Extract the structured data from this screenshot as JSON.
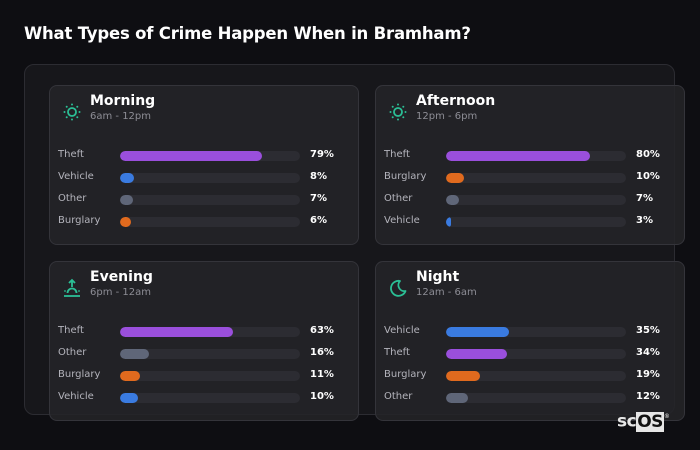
{
  "title": "What Types of Crime Happen When in Bramham?",
  "colors": {
    "Theft": "#9a4fdc",
    "Vehicle": "#3a7be0",
    "Other": "#5f6678",
    "Burglary": "#e06a1e",
    "icon": "#2bbf95"
  },
  "cards": [
    {
      "title": "Morning",
      "range": "6am - 12pm",
      "icon": "sun-icon",
      "rows": [
        {
          "label": "Theft",
          "value": 79,
          "text": "79%"
        },
        {
          "label": "Vehicle",
          "value": 8,
          "text": "8%"
        },
        {
          "label": "Other",
          "value": 7,
          "text": "7%"
        },
        {
          "label": "Burglary",
          "value": 6,
          "text": "6%"
        }
      ]
    },
    {
      "title": "Afternoon",
      "range": "12pm - 6pm",
      "icon": "sun-icon",
      "rows": [
        {
          "label": "Theft",
          "value": 80,
          "text": "80%"
        },
        {
          "label": "Burglary",
          "value": 10,
          "text": "10%"
        },
        {
          "label": "Other",
          "value": 7,
          "text": "7%"
        },
        {
          "label": "Vehicle",
          "value": 3,
          "text": "3%"
        }
      ]
    },
    {
      "title": "Evening",
      "range": "6pm - 12am",
      "icon": "sunset-icon",
      "rows": [
        {
          "label": "Theft",
          "value": 63,
          "text": "63%"
        },
        {
          "label": "Other",
          "value": 16,
          "text": "16%"
        },
        {
          "label": "Burglary",
          "value": 11,
          "text": "11%"
        },
        {
          "label": "Vehicle",
          "value": 10,
          "text": "10%"
        }
      ]
    },
    {
      "title": "Night",
      "range": "12am - 6am",
      "icon": "moon-icon",
      "rows": [
        {
          "label": "Vehicle",
          "value": 35,
          "text": "35%"
        },
        {
          "label": "Theft",
          "value": 34,
          "text": "34%"
        },
        {
          "label": "Burglary",
          "value": 19,
          "text": "19%"
        },
        {
          "label": "Other",
          "value": 12,
          "text": "12%"
        }
      ]
    }
  ],
  "logo": {
    "sc": "sc",
    "os": "OS",
    "reg": "®"
  },
  "chart_data": [
    {
      "type": "bar",
      "title": "Morning (6am - 12pm)",
      "categories": [
        "Theft",
        "Vehicle",
        "Other",
        "Burglary"
      ],
      "values": [
        79,
        8,
        7,
        6
      ],
      "unit": "%",
      "xlim": [
        0,
        100
      ]
    },
    {
      "type": "bar",
      "title": "Afternoon (12pm - 6pm)",
      "categories": [
        "Theft",
        "Burglary",
        "Other",
        "Vehicle"
      ],
      "values": [
        80,
        10,
        7,
        3
      ],
      "unit": "%",
      "xlim": [
        0,
        100
      ]
    },
    {
      "type": "bar",
      "title": "Evening (6pm - 12am)",
      "categories": [
        "Theft",
        "Other",
        "Burglary",
        "Vehicle"
      ],
      "values": [
        63,
        16,
        11,
        10
      ],
      "unit": "%",
      "xlim": [
        0,
        100
      ]
    },
    {
      "type": "bar",
      "title": "Night (12am - 6am)",
      "categories": [
        "Vehicle",
        "Theft",
        "Burglary",
        "Other"
      ],
      "values": [
        35,
        34,
        19,
        12
      ],
      "unit": "%",
      "xlim": [
        0,
        100
      ]
    }
  ]
}
